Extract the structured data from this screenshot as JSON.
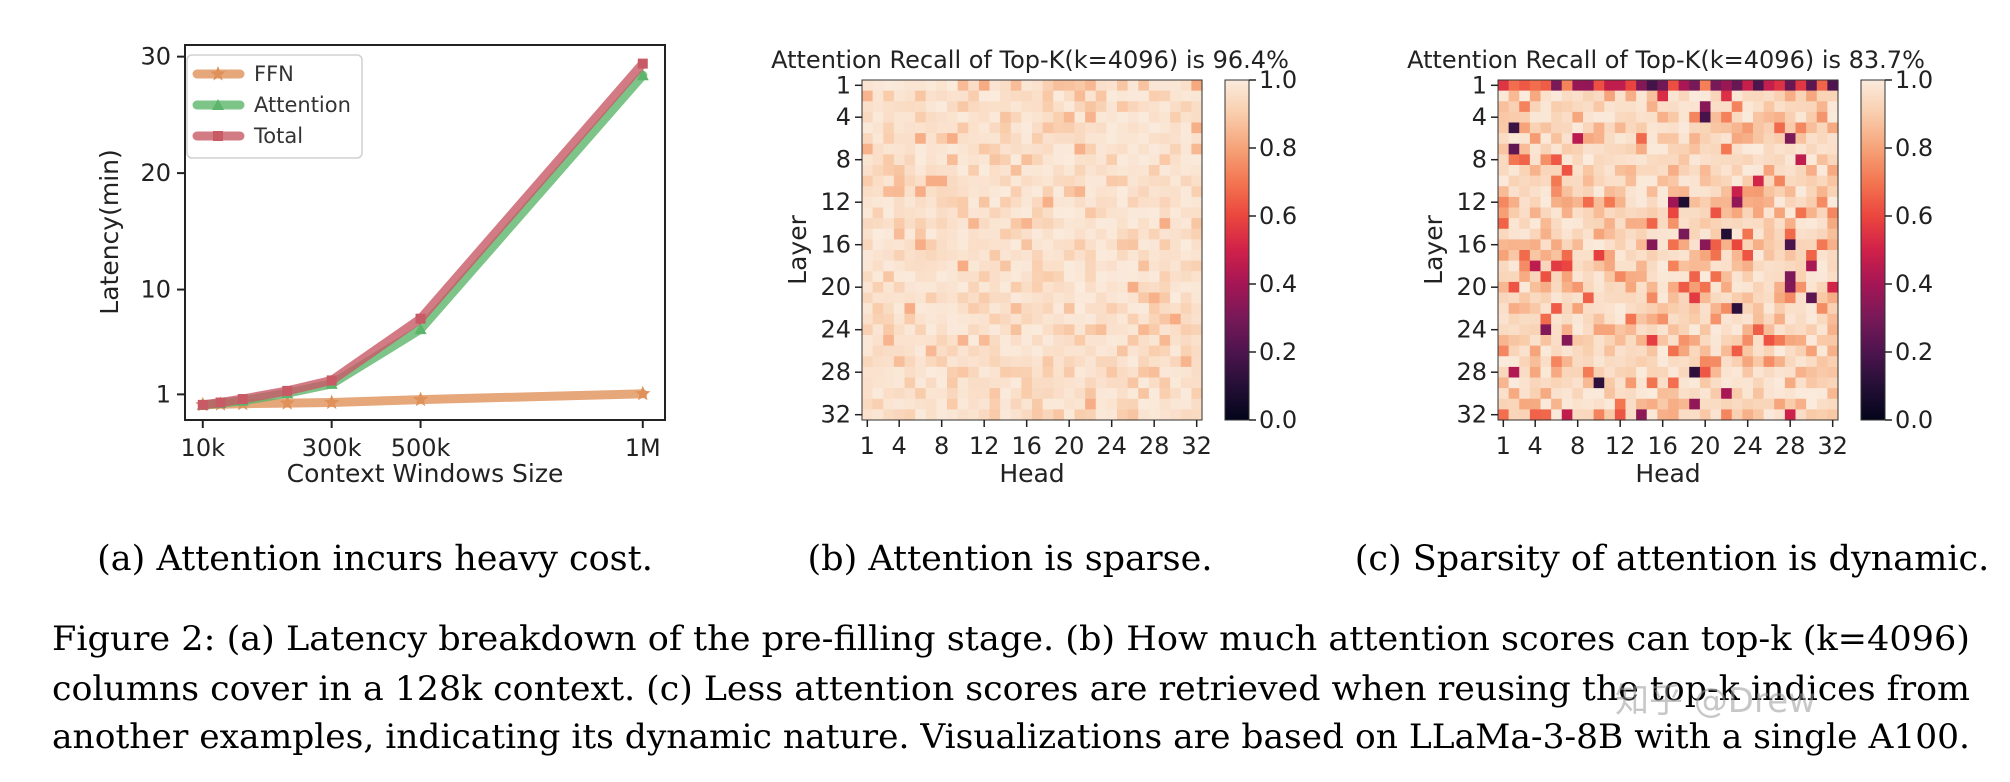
{
  "chart_data": [
    {
      "type": "line",
      "panel": "a",
      "xlabel": "Context Windows Size",
      "ylabel": "Latency(min)",
      "x": [
        10000,
        50000,
        100000,
        200000,
        300000,
        500000,
        1000000
      ],
      "xticks": [
        {
          "v": 10000,
          "label": "10k"
        },
        {
          "v": 300000,
          "label": "300k"
        },
        {
          "v": 500000,
          "label": "500k"
        },
        {
          "v": 1000000,
          "label": "1M"
        }
      ],
      "yticks": [
        {
          "v": 1,
          "label": "1"
        },
        {
          "v": 10,
          "label": "10"
        },
        {
          "v": 20,
          "label": "20"
        },
        {
          "v": 30,
          "label": "30"
        }
      ],
      "xlim": [
        -30000,
        1050000
      ],
      "ylim": [
        -1.2,
        31
      ],
      "legend": "top-left",
      "series": [
        {
          "name": "FFN",
          "color": "#e0915a",
          "marker": "star",
          "values": [
            0.1,
            0.15,
            0.2,
            0.25,
            0.3,
            0.55,
            1.05
          ]
        },
        {
          "name": "Attention",
          "color": "#5cb56a",
          "marker": "triangle",
          "values": [
            0.1,
            0.25,
            0.45,
            1.1,
            1.9,
            6.6,
            28.4
          ]
        },
        {
          "name": "Total",
          "color": "#c85a66",
          "marker": "square",
          "values": [
            0.1,
            0.3,
            0.6,
            1.3,
            2.2,
            7.5,
            29.4
          ]
        }
      ],
      "caption": "(a) Attention incurs heavy cost."
    },
    {
      "type": "heatmap",
      "panel": "b",
      "title": "Attention Recall of Top-K(k=4096) is 96.4%",
      "xlabel": "Head",
      "ylabel": "Layer",
      "xticks": [
        "1",
        "4",
        "8",
        "12",
        "16",
        "20",
        "24",
        "28",
        "32"
      ],
      "yticks": [
        "1",
        "4",
        "8",
        "12",
        "16",
        "20",
        "24",
        "28",
        "32"
      ],
      "colorbar_ticks": [
        "0.0",
        "0.2",
        "0.4",
        "0.6",
        "0.8",
        "1.0"
      ],
      "vmin": 0.0,
      "vmax": 1.0,
      "rows": 32,
      "cols": 32,
      "mean_recall": 0.964,
      "caption": "(b) Attention is sparse."
    },
    {
      "type": "heatmap",
      "panel": "c",
      "title": "Attention Recall of Top-K(k=4096) is 83.7%",
      "xlabel": "Head",
      "ylabel": "Layer",
      "xticks": [
        "1",
        "4",
        "8",
        "12",
        "16",
        "20",
        "24",
        "28",
        "32"
      ],
      "yticks": [
        "1",
        "4",
        "8",
        "12",
        "16",
        "20",
        "24",
        "28",
        "32"
      ],
      "colorbar_ticks": [
        "0.0",
        "0.2",
        "0.4",
        "0.6",
        "0.8",
        "1.0"
      ],
      "vmin": 0.0,
      "vmax": 1.0,
      "rows": 32,
      "cols": 32,
      "mean_recall": 0.837,
      "caption": "(c) Sparsity of attention is dynamic."
    }
  ],
  "figure_caption": {
    "line1": "Figure 2: (a) Latency breakdown of the pre-filling stage. (b) How much attention scores can top-k (k=4096)",
    "line2": "columns cover in a 128k context. (c) Less attention scores are retrieved when reusing the top-k indices from",
    "line3": "another examples, indicating its dynamic nature. Visualizations are based on LLaMa-3-8B with a single A100."
  },
  "watermark": "知乎 @Drew"
}
